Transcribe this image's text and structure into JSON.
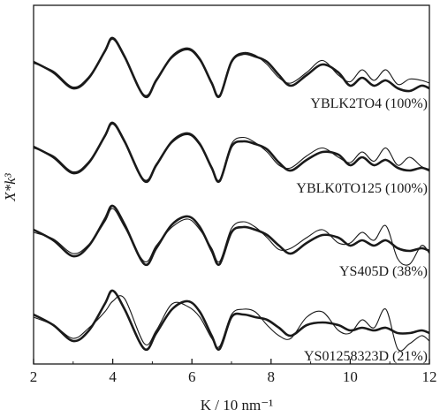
{
  "chart_data": {
    "type": "line",
    "title": "",
    "xlabel": "K / 10 nm⁻¹",
    "ylabel": "X*k³",
    "xlim": [
      2,
      12
    ],
    "x_ticks": [
      2,
      4,
      6,
      8,
      10,
      12
    ],
    "y_ticks_shown": false,
    "grid": false,
    "legend": "none",
    "line_color": "#1a1a1a",
    "stack_offset": 1.6,
    "panels": [
      {
        "label": "YBLK2TO4 (100%)",
        "series": [
          {
            "style": "bold",
            "x": [
              2.0,
              2.5,
              3.0,
              3.4,
              3.8,
              4.0,
              4.3,
              4.8,
              5.1,
              5.5,
              5.9,
              6.2,
              6.5,
              6.7,
              7.0,
              7.3,
              7.6,
              7.9,
              8.2,
              8.5,
              8.9,
              9.3,
              9.7,
              10.0,
              10.3,
              10.6,
              10.9,
              11.2,
              11.5,
              11.8,
              12.0
            ],
            "y": [
              0.4,
              0.0,
              -0.6,
              -0.2,
              0.8,
              1.3,
              0.6,
              -0.9,
              -0.3,
              0.6,
              0.9,
              0.5,
              -0.4,
              -0.9,
              0.4,
              0.7,
              0.6,
              0.4,
              -0.1,
              -0.5,
              -0.1,
              0.3,
              0.0,
              -0.5,
              -0.2,
              -0.5,
              -0.3,
              -0.6,
              -0.7,
              -0.5,
              -0.6
            ]
          },
          {
            "style": "thin",
            "x": [
              2.0,
              2.5,
              3.0,
              3.4,
              3.8,
              4.0,
              4.3,
              4.8,
              5.1,
              5.5,
              5.9,
              6.2,
              6.5,
              6.7,
              7.0,
              7.3,
              7.6,
              7.9,
              8.2,
              8.5,
              8.9,
              9.3,
              9.7,
              10.0,
              10.3,
              10.6,
              10.9,
              11.2,
              11.5,
              11.8,
              12.0
            ],
            "y": [
              0.35,
              0.05,
              -0.55,
              -0.15,
              0.75,
              1.25,
              0.55,
              -0.85,
              -0.25,
              0.55,
              0.85,
              0.45,
              -0.35,
              -0.85,
              0.45,
              0.75,
              0.65,
              0.3,
              -0.2,
              -0.4,
              0.0,
              0.45,
              -0.1,
              -0.35,
              0.1,
              -0.3,
              0.1,
              -0.45,
              -0.25,
              -0.3,
              -0.4
            ]
          }
        ]
      },
      {
        "label": "YBLK0TO125 (100%)",
        "series": [
          {
            "style": "bold",
            "x": [
              2.0,
              2.5,
              3.0,
              3.4,
              3.8,
              4.0,
              4.3,
              4.8,
              5.1,
              5.5,
              5.9,
              6.2,
              6.5,
              6.7,
              7.0,
              7.3,
              7.6,
              7.9,
              8.2,
              8.5,
              8.9,
              9.3,
              9.7,
              10.0,
              10.3,
              10.6,
              10.9,
              11.2,
              11.5,
              11.8,
              12.0
            ],
            "y": [
              0.4,
              0.0,
              -0.6,
              -0.2,
              0.8,
              1.3,
              0.6,
              -0.9,
              -0.3,
              0.6,
              0.9,
              0.5,
              -0.4,
              -0.9,
              0.4,
              0.6,
              0.5,
              0.3,
              -0.2,
              -0.5,
              -0.1,
              0.2,
              0.1,
              -0.3,
              0.0,
              -0.3,
              -0.1,
              -0.4,
              -0.5,
              -0.4,
              -0.5
            ]
          },
          {
            "style": "thin",
            "x": [
              2.0,
              2.5,
              3.0,
              3.4,
              3.8,
              4.0,
              4.3,
              4.8,
              5.1,
              5.5,
              5.9,
              6.2,
              6.5,
              6.7,
              7.0,
              7.3,
              7.6,
              7.9,
              8.2,
              8.5,
              8.9,
              9.3,
              9.7,
              10.0,
              10.3,
              10.6,
              10.9,
              11.2,
              11.5,
              11.8,
              12.0
            ],
            "y": [
              0.35,
              0.05,
              -0.55,
              -0.15,
              0.75,
              1.25,
              0.55,
              -0.85,
              -0.25,
              0.55,
              0.85,
              0.45,
              -0.35,
              -0.85,
              0.5,
              0.75,
              0.55,
              0.2,
              -0.3,
              -0.4,
              0.05,
              0.35,
              0.0,
              -0.2,
              0.2,
              -0.15,
              0.35,
              -0.3,
              0.0,
              -0.35,
              -0.45
            ]
          }
        ]
      },
      {
        "label": "YS405D (38%)",
        "series": [
          {
            "style": "bold",
            "x": [
              2.0,
              2.5,
              3.0,
              3.4,
              3.8,
              4.0,
              4.3,
              4.8,
              5.1,
              5.5,
              5.9,
              6.2,
              6.5,
              6.7,
              7.0,
              7.3,
              7.6,
              7.9,
              8.2,
              8.5,
              8.9,
              9.3,
              9.7,
              10.0,
              10.3,
              10.6,
              10.9,
              11.2,
              11.5,
              11.8,
              12.0
            ],
            "y": [
              0.4,
              0.0,
              -0.6,
              -0.2,
              0.8,
              1.3,
              0.6,
              -0.9,
              -0.3,
              0.6,
              0.9,
              0.5,
              -0.4,
              -0.9,
              0.3,
              0.5,
              0.4,
              0.2,
              -0.2,
              -0.5,
              -0.1,
              0.2,
              0.1,
              -0.2,
              0.0,
              -0.2,
              0.0,
              -0.3,
              -0.4,
              -0.3,
              -0.4
            ]
          },
          {
            "style": "thin",
            "x": [
              2.0,
              2.5,
              3.0,
              3.4,
              3.8,
              4.0,
              4.3,
              4.8,
              5.1,
              5.5,
              5.9,
              6.2,
              6.5,
              6.7,
              7.0,
              7.3,
              7.6,
              7.9,
              8.2,
              8.5,
              8.9,
              9.3,
              9.7,
              10.0,
              10.3,
              10.6,
              10.9,
              11.2,
              11.5,
              11.8,
              12.0
            ],
            "y": [
              0.3,
              0.05,
              -0.5,
              -0.15,
              0.7,
              1.2,
              0.5,
              -0.8,
              -0.2,
              0.5,
              0.8,
              0.4,
              -0.3,
              -0.8,
              0.45,
              0.7,
              0.5,
              0.1,
              -0.35,
              -0.3,
              0.1,
              0.4,
              -0.1,
              -0.1,
              0.3,
              0.0,
              0.55,
              -0.7,
              -0.9,
              -0.2,
              -0.5
            ]
          }
        ]
      },
      {
        "label": "YS01258323D (21%)",
        "series": [
          {
            "style": "bold",
            "x": [
              2.0,
              2.5,
              3.0,
              3.4,
              3.8,
              4.0,
              4.3,
              4.8,
              5.1,
              5.5,
              5.9,
              6.2,
              6.5,
              6.7,
              7.0,
              7.3,
              7.6,
              7.9,
              8.2,
              8.5,
              8.9,
              9.3,
              9.7,
              10.0,
              10.3,
              10.6,
              10.9,
              11.2,
              11.5,
              11.8,
              12.0
            ],
            "y": [
              0.4,
              0.0,
              -0.6,
              -0.2,
              0.8,
              1.3,
              0.6,
              -0.9,
              -0.3,
              0.6,
              0.9,
              0.5,
              -0.4,
              -0.9,
              0.3,
              0.4,
              0.3,
              0.2,
              -0.1,
              -0.4,
              0.0,
              0.1,
              0.0,
              -0.2,
              -0.1,
              -0.2,
              -0.1,
              -0.3,
              -0.3,
              -0.2,
              -0.3
            ]
          },
          {
            "style": "thin",
            "x": [
              2.0,
              2.5,
              3.0,
              3.4,
              3.8,
              4.0,
              4.3,
              4.8,
              5.1,
              5.5,
              5.9,
              6.2,
              6.5,
              6.7,
              7.0,
              7.3,
              7.6,
              7.9,
              8.2,
              8.5,
              8.9,
              9.3,
              9.7,
              10.0,
              10.3,
              10.6,
              10.9,
              11.2,
              11.5,
              11.8,
              12.0
            ],
            "y": [
              0.3,
              0.0,
              -0.5,
              -0.1,
              0.5,
              0.9,
              1.0,
              -0.7,
              -0.2,
              0.8,
              0.7,
              0.3,
              -0.5,
              -0.8,
              0.4,
              0.6,
              0.5,
              0.0,
              -0.4,
              -0.5,
              0.3,
              0.5,
              -0.2,
              -0.3,
              0.2,
              -0.1,
              0.6,
              -0.9,
              -0.7,
              -0.4,
              -0.6
            ]
          }
        ]
      }
    ]
  }
}
